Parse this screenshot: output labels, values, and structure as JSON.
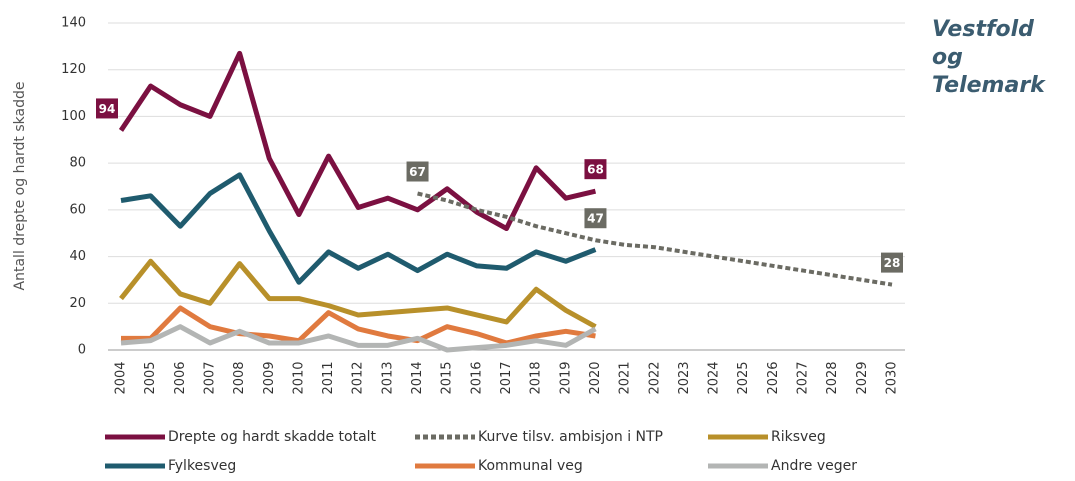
{
  "chart_data": {
    "type": "line",
    "title": "Vestfold og Telemark",
    "y_label": "Antall drepte og hardt skadde",
    "categories": [
      2004,
      2005,
      2006,
      2007,
      2008,
      2009,
      2010,
      2011,
      2012,
      2013,
      2014,
      2015,
      2016,
      2017,
      2018,
      2019,
      2020,
      2021,
      2022,
      2023,
      2024,
      2025,
      2026,
      2027,
      2028,
      2029,
      2030
    ],
    "ylim": [
      0,
      140
    ],
    "yticks": [
      0,
      20,
      40,
      60,
      80,
      100,
      120,
      140
    ],
    "grid": true,
    "series": [
      {
        "name": "Drepte og hardt skadde totalt",
        "color": "#7b1041",
        "dashed": false,
        "data_labels": [
          0,
          16
        ],
        "values": [
          94,
          113,
          105,
          100,
          127,
          82,
          58,
          83,
          61,
          65,
          60,
          69,
          59,
          52,
          78,
          65,
          68,
          null,
          null,
          null,
          null,
          null,
          null,
          null,
          null,
          null,
          null
        ]
      },
      {
        "name": "Kurve tilsv. ambisjon i NTP",
        "color": "#6b6b63",
        "dashed": true,
        "data_labels": [
          10,
          16,
          26
        ],
        "values": [
          null,
          null,
          null,
          null,
          null,
          null,
          null,
          null,
          null,
          null,
          67,
          64,
          60,
          57,
          53,
          50,
          47,
          45,
          44,
          42,
          40,
          38,
          36,
          34,
          32,
          30,
          28
        ]
      },
      {
        "name": "Riksveg",
        "color": "#b8902a",
        "dashed": false,
        "data_labels": [],
        "values": [
          22,
          38,
          24,
          20,
          37,
          22,
          22,
          19,
          15,
          16,
          17,
          18,
          15,
          12,
          26,
          17,
          10,
          null,
          null,
          null,
          null,
          null,
          null,
          null,
          null,
          null,
          null
        ]
      },
      {
        "name": "Fylkesveg",
        "color": "#1f5b6e",
        "dashed": false,
        "data_labels": [],
        "values": [
          64,
          66,
          53,
          67,
          75,
          51,
          29,
          42,
          35,
          41,
          34,
          41,
          36,
          35,
          42,
          38,
          43,
          null,
          null,
          null,
          null,
          null,
          null,
          null,
          null,
          null,
          null
        ]
      },
      {
        "name": "Kommunal veg",
        "color": "#e07a3f",
        "dashed": false,
        "data_labels": [],
        "values": [
          5,
          5,
          18,
          10,
          7,
          6,
          4,
          16,
          9,
          6,
          4,
          10,
          7,
          3,
          6,
          8,
          6,
          null,
          null,
          null,
          null,
          null,
          null,
          null,
          null,
          null,
          null
        ]
      },
      {
        "name": "Andre veger",
        "color": "#b3b5b4",
        "dashed": false,
        "data_labels": [],
        "values": [
          3,
          4,
          10,
          3,
          8,
          3,
          3,
          6,
          2,
          2,
          5,
          0,
          1,
          2,
          4,
          2,
          9,
          null,
          null,
          null,
          null,
          null,
          null,
          null,
          null,
          null,
          null
        ]
      }
    ]
  }
}
